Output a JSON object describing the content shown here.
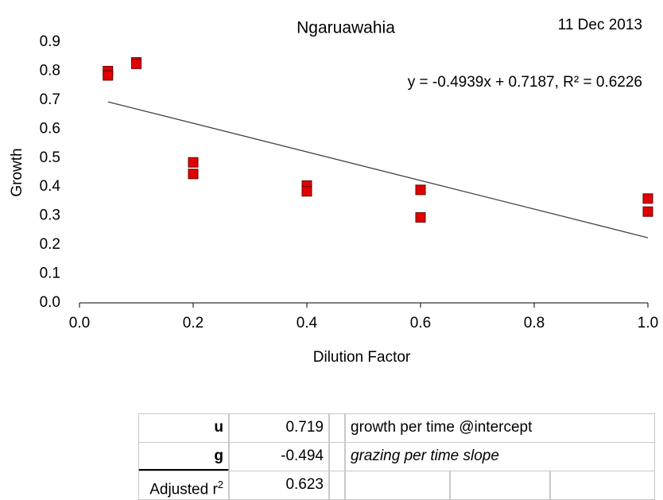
{
  "chart_data": {
    "type": "scatter",
    "title": "Ngaruawahia",
    "date": "11 Dec 2013",
    "xlabel": "Dilution Factor",
    "ylabel": "Growth",
    "x": [
      0.05,
      0.05,
      0.1,
      0.1,
      0.2,
      0.2,
      0.4,
      0.4,
      0.6,
      0.6,
      1.0,
      1.0
    ],
    "values": [
      0.8,
      0.785,
      0.83,
      0.825,
      0.485,
      0.445,
      0.405,
      0.385,
      0.39,
      0.295,
      0.36,
      0.315
    ],
    "color": "#e00000",
    "xlim": [
      0,
      1
    ],
    "xticks": [
      {
        "value": 0,
        "label": "0.0"
      },
      0.2,
      0.4,
      0.6,
      0.8,
      {
        "value": 1,
        "label": "1.0"
      }
    ],
    "ylim": [
      0,
      0.9
    ],
    "yticks": [
      {
        "value": 0,
        "label": "0.0"
      },
      0.1,
      0.2,
      0.3,
      0.4,
      0.5,
      0.6,
      0.7,
      0.8,
      0.9
    ],
    "trendline": {
      "slope": -0.4939,
      "intercept": 0.7187,
      "equation": "y = -0.4939x + 0.7187, R² = 0.6226"
    }
  },
  "table": {
    "rows": [
      [
        "u",
        "0.719",
        "growth per time @intercept"
      ],
      [
        "g",
        "-0.494",
        "grazing per time slope"
      ],
      [
        "Adjusted r",
        "0.623"
      ]
    ],
    "superscript": "2"
  }
}
